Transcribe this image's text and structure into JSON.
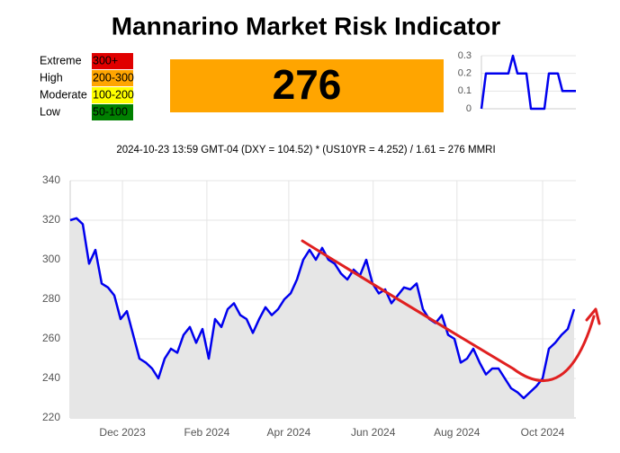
{
  "title": "Mannarino Market Risk Indicator",
  "legend": [
    {
      "label": "Extreme",
      "range": "300+",
      "color": "#e00000"
    },
    {
      "label": "High",
      "range": "200-300",
      "color": "#ffa500"
    },
    {
      "label": "Moderate",
      "range": "100-200",
      "color": "#ffff00"
    },
    {
      "label": "Low",
      "range": "50-100",
      "color": "#008000"
    }
  ],
  "value": 276,
  "value_color": "#ffa500",
  "formula": "2024-10-23 13:59 GMT-04 (DXY = 104.52) * (US10YR = 4.252) / 1.61 = 276 MMRI",
  "chart_data": [
    {
      "type": "line",
      "series": [
        {
          "name": "Change",
          "color": "#0000ee",
          "values": [
            0,
            0.2,
            0.2,
            0.2,
            0.2,
            0.2,
            0.2,
            0.3,
            0.2,
            0.2,
            0.2,
            0,
            0,
            0,
            0,
            0.2,
            0.2,
            0.2,
            0.1,
            0.1,
            0.1,
            0.1
          ]
        }
      ],
      "xlim": [
        0,
        21
      ],
      "ylim": [
        0,
        0.3
      ],
      "yticks": [
        0,
        0.1,
        0.2,
        0.3
      ],
      "grid": true
    },
    {
      "type": "line",
      "series": [
        {
          "name": "MMRI",
          "color": "#0000ee",
          "fill": "#e6e6e6",
          "values": [
            320,
            321,
            318,
            298,
            305,
            288,
            286,
            282,
            270,
            274,
            262,
            250,
            248,
            245,
            240,
            250,
            255,
            253,
            262,
            266,
            258,
            265,
            250,
            270,
            266,
            275,
            278,
            272,
            270,
            263,
            270,
            276,
            272,
            275,
            280,
            283,
            290,
            300,
            305,
            300,
            306,
            300,
            298,
            293,
            290,
            295,
            292,
            300,
            288,
            283,
            285,
            278,
            282,
            286,
            285,
            288,
            275,
            270,
            268,
            272,
            262,
            260,
            248,
            250,
            255,
            248,
            242,
            245,
            245,
            240,
            235,
            233,
            230,
            233,
            236,
            240,
            255,
            258,
            262,
            265,
            275
          ]
        }
      ],
      "xlim": [
        0,
        80
      ],
      "xticks": [
        {
          "value": 8.3,
          "label": "Dec 2023"
        },
        {
          "value": 21.7,
          "label": "Feb 2024"
        },
        {
          "value": 34.7,
          "label": "Apr 2024"
        },
        {
          "value": 48.1,
          "label": "Jun 2024"
        },
        {
          "value": 61.4,
          "label": "Aug 2024"
        },
        {
          "value": 75,
          "label": "Oct 2024"
        }
      ],
      "ylim": [
        220,
        340
      ],
      "yticks": [
        220,
        240,
        260,
        280,
        300,
        320,
        340
      ],
      "grid": true
    }
  ]
}
